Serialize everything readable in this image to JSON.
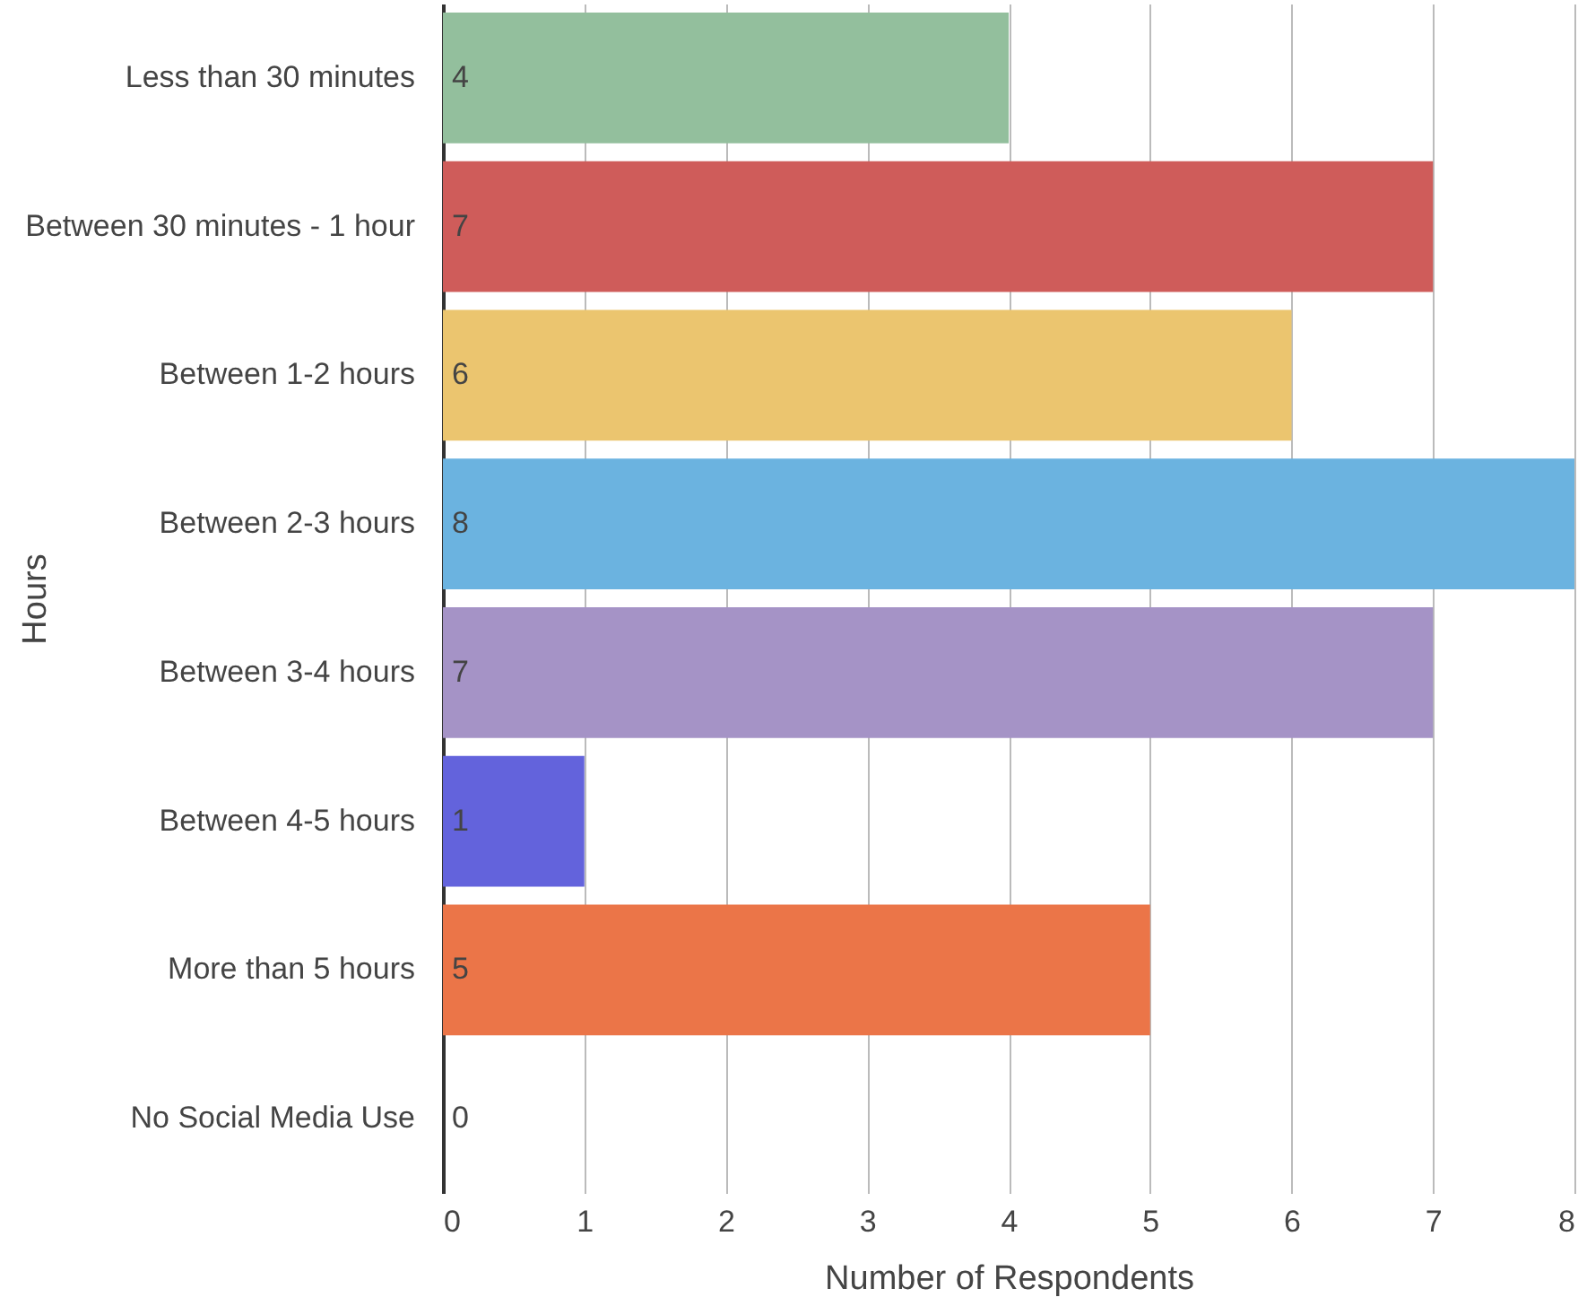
{
  "chart_data": {
    "type": "bar",
    "orientation": "horizontal",
    "xlabel": "Number of Respondents",
    "ylabel": "Hours",
    "categories": [
      "Less than 30 minutes",
      "Between 30 minutes - 1 hour",
      "Between 1-2 hours",
      "Between 2-3 hours",
      "Between 3-4 hours",
      "Between 4-5 hours",
      "More than 5 hours",
      "No Social Media Use"
    ],
    "values": [
      4,
      7,
      6,
      8,
      7,
      1,
      5,
      0
    ],
    "colors": [
      "#93bf9d",
      "#cf5c5a",
      "#ebc56f",
      "#6bb3e0",
      "#a593c6",
      "#6363dc",
      "#eb7548",
      "#9e9e9e"
    ],
    "xlim": [
      0,
      8
    ],
    "xticks": [
      0,
      1,
      2,
      3,
      4,
      5,
      6,
      7,
      8
    ],
    "grid": "x",
    "data_labels": true
  }
}
